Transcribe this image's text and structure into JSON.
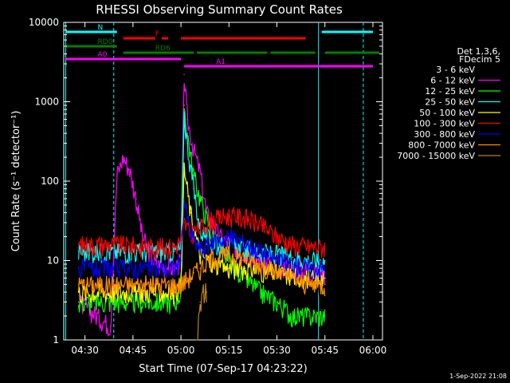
{
  "chart_data": {
    "type": "line",
    "title": "RHESSI Observing Summary Count Rates",
    "xlabel": "Start Time (07-Sep-17 04:23:22)",
    "ylabel": "Count Rate (s⁻¹ detector⁻¹)",
    "y_scale": "log",
    "ylim": [
      1,
      10000
    ],
    "xlim": [
      "04:23:22",
      "06:03"
    ],
    "x_ticks": [
      "04:30",
      "04:45",
      "05:00",
      "05:15",
      "05:30",
      "05:45",
      "06:00"
    ],
    "y_ticks": [
      "1",
      "10",
      "100",
      "1000",
      "10000"
    ],
    "grid": false,
    "legend_position": "right",
    "legend_header": [
      "Det 1,3,6,",
      "FDecim 5"
    ],
    "footer_date": "1-Sep-2022 21:08",
    "series": [
      {
        "name": "3 - 6 keV",
        "color": "#000000",
        "x": [
          "04:28",
          "04:38",
          "04:40",
          "04:42",
          "04:44",
          "04:46",
          "04:48",
          "04:52",
          "04:58",
          "05:00",
          "05:01",
          "05:03",
          "05:06",
          "05:10",
          "05:15",
          "05:20",
          "05:25",
          "05:30",
          "05:35",
          "05:40",
          "05:45"
        ],
        "y": [
          7,
          7,
          30,
          47,
          25,
          12,
          9,
          8,
          8,
          9,
          40,
          18,
          9,
          11,
          9,
          8,
          7,
          6,
          5,
          5,
          5
        ]
      },
      {
        "name": "6 - 12 keV",
        "color": "#ff00ff",
        "x": [
          "04:28",
          "04:38",
          "04:40",
          "04:42",
          "04:44",
          "04:46",
          "04:48",
          "04:52",
          "04:58",
          "05:00",
          "05:01",
          "05:02",
          "05:04",
          "05:06",
          "05:08",
          "05:12",
          "05:18",
          "05:25",
          "05:35",
          "05:45"
        ],
        "y": [
          3,
          1.5,
          120,
          200,
          140,
          60,
          20,
          9,
          8,
          10,
          2200,
          600,
          250,
          130,
          40,
          20,
          14,
          10,
          8,
          7
        ]
      },
      {
        "name": "12 - 25 keV",
        "color": "#00ff00",
        "x": [
          "04:28",
          "04:35",
          "04:45",
          "04:50",
          "04:58",
          "05:00",
          "05:01",
          "05:02",
          "05:04",
          "05:06",
          "05:10",
          "05:15",
          "05:20",
          "05:25",
          "05:30",
          "05:35",
          "05:40",
          "05:45"
        ],
        "y": [
          3,
          3,
          3,
          3,
          3,
          4,
          900,
          400,
          120,
          60,
          20,
          10,
          6,
          4,
          3,
          2,
          2,
          2
        ]
      },
      {
        "name": "25 - 50 keV",
        "color": "#00ffff",
        "x": [
          "04:28",
          "04:40",
          "04:50",
          "04:58",
          "05:00",
          "05:01",
          "05:02",
          "05:04",
          "05:06",
          "05:10",
          "05:15",
          "05:20",
          "05:25",
          "05:30",
          "05:35",
          "05:40",
          "05:45"
        ],
        "y": [
          13,
          13,
          13,
          13,
          14,
          700,
          300,
          80,
          25,
          16,
          15,
          14,
          13,
          12,
          11,
          10,
          10
        ]
      },
      {
        "name": "50 - 100 keV",
        "color": "#ffff00",
        "x": [
          "04:28",
          "04:58",
          "05:00",
          "05:01",
          "05:03",
          "05:06",
          "05:10",
          "05:15",
          "05:20",
          "05:30",
          "05:40",
          "05:45"
        ],
        "y": [
          4,
          4,
          5,
          150,
          40,
          12,
          9,
          8,
          8,
          7,
          6,
          6
        ]
      },
      {
        "name": "100 - 300 keV",
        "color": "#ff0000",
        "x": [
          "04:28",
          "04:40",
          "04:50",
          "04:58",
          "05:00",
          "05:01",
          "05:03",
          "05:06",
          "05:10",
          "05:15",
          "05:20",
          "05:25",
          "05:30",
          "05:35",
          "05:40",
          "05:45"
        ],
        "y": [
          16,
          16,
          15,
          15,
          18,
          30,
          22,
          26,
          33,
          37,
          35,
          28,
          20,
          16,
          15,
          15
        ]
      },
      {
        "name": "300 - 800 keV",
        "color": "#0000ff",
        "x": [
          "04:28",
          "04:40",
          "04:50",
          "04:58",
          "05:00",
          "05:01",
          "05:03",
          "05:06",
          "05:10",
          "05:15",
          "05:20",
          "05:25",
          "05:30",
          "05:35",
          "05:40",
          "05:45"
        ],
        "y": [
          8,
          8,
          8,
          8,
          10,
          60,
          22,
          14,
          17,
          20,
          17,
          13,
          10,
          9,
          8,
          8
        ]
      },
      {
        "name": "800 - 7000 keV",
        "color": "#ff8c00",
        "x": [
          "04:28",
          "04:40",
          "04:50",
          "04:58",
          "05:00",
          "05:02",
          "05:04",
          "05:06",
          "05:10",
          "05:15",
          "05:20",
          "05:25",
          "05:30",
          "05:35",
          "05:40",
          "05:45"
        ],
        "y": [
          5,
          5,
          5,
          5,
          5,
          6,
          7,
          8,
          11,
          12,
          11,
          9,
          7,
          6,
          5,
          5
        ]
      },
      {
        "name": "7000 - 15000 keV",
        "color": "#b8860b",
        "x": [
          "05:05",
          "05:06",
          "05:07",
          "05:08"
        ],
        "y": [
          1,
          3,
          4,
          4
        ]
      }
    ],
    "mode_bars": [
      {
        "label": "N",
        "color": "#00ffff",
        "segments": [
          [
            "04:24",
            "04:40"
          ],
          [
            "05:44",
            "06:00"
          ]
        ]
      },
      {
        "label": "F",
        "color": "#ff0000",
        "segments": [
          [
            "04:42",
            "04:52"
          ],
          [
            "04:54",
            "04:56"
          ],
          [
            "05:00",
            "05:39"
          ]
        ]
      },
      {
        "label": "RD0",
        "color": "#008000",
        "segments": [
          [
            "04:24",
            "04:40"
          ]
        ]
      },
      {
        "label": "RD6",
        "color": "#008000",
        "segments": [
          [
            "04:42",
            "05:04"
          ],
          [
            "05:05",
            "05:27"
          ],
          [
            "05:28",
            "05:42"
          ],
          [
            "05:45",
            "06:02"
          ]
        ]
      },
      {
        "label": "A0",
        "color": "#ff00ff",
        "segments": [
          [
            "04:24",
            "05:00"
          ]
        ]
      },
      {
        "label": "A1",
        "color": "#ff00ff",
        "segments": [
          [
            "05:01",
            "06:00"
          ]
        ]
      }
    ],
    "saa_lines": {
      "solid": [
        "04:24",
        "05:43"
      ],
      "dashed": [
        "04:39",
        "05:57"
      ]
    }
  }
}
